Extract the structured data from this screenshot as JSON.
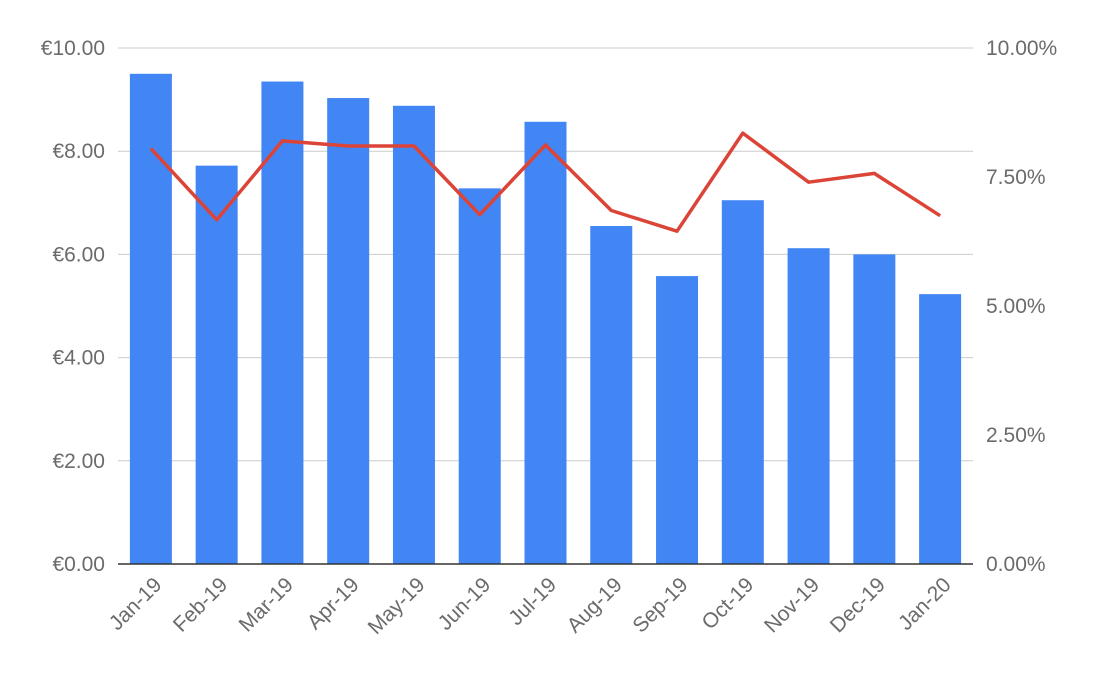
{
  "chart_data": {
    "type": "bar",
    "title": "",
    "xlabel": "",
    "ylabel": "",
    "categories": [
      "Jan-19",
      "Feb-19",
      "Mar-19",
      "Apr-19",
      "May-19",
      "Jun-19",
      "Jul-19",
      "Aug-19",
      "Sep-19",
      "Oct-19",
      "Nov-19",
      "Dec-19",
      "Jan-20"
    ],
    "series": [
      {
        "type": "bar",
        "axis": "left",
        "color": "#4285f4",
        "values": [
          9.5,
          7.72,
          9.35,
          9.03,
          8.88,
          7.28,
          8.57,
          6.55,
          5.58,
          7.05,
          6.12,
          6.0,
          5.23
        ]
      },
      {
        "type": "line",
        "axis": "right",
        "color": "#db4437",
        "values": [
          8.05,
          6.67,
          8.2,
          8.1,
          8.1,
          6.77,
          8.12,
          6.85,
          6.45,
          8.35,
          7.4,
          7.57,
          6.75
        ]
      }
    ],
    "y_left": {
      "min": 0,
      "max": 10,
      "ticks": [
        0,
        2,
        4,
        6,
        8,
        10
      ],
      "tick_labels": [
        "€0.00",
        "€2.00",
        "€4.00",
        "€6.00",
        "€8.00",
        "€10.00"
      ]
    },
    "y_right": {
      "min": 0,
      "max": 10,
      "ticks": [
        0,
        2.5,
        5,
        7.5,
        10
      ],
      "tick_labels": [
        "0.00%",
        "2.50%",
        "5.00%",
        "7.50%",
        "10.00%"
      ]
    },
    "grid": true,
    "legend": "none"
  }
}
